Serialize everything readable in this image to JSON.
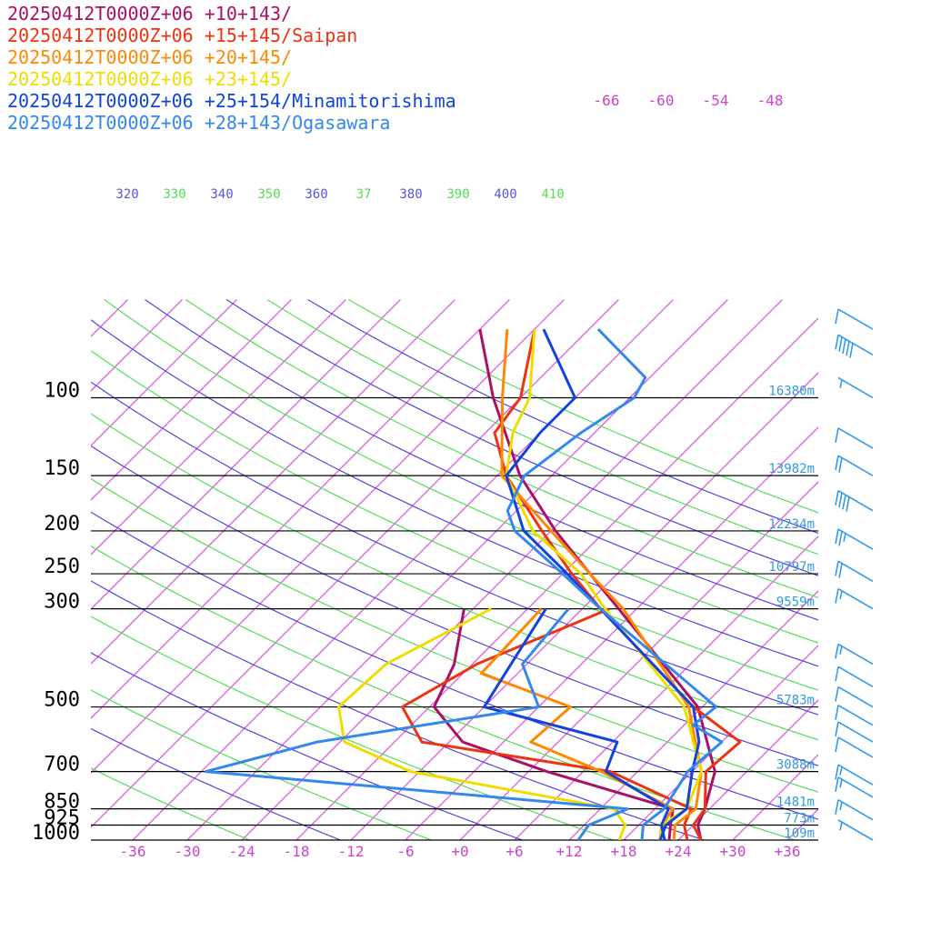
{
  "chart_data": {
    "type": "line",
    "title": "",
    "chart_kind": "Skew-T log-P sounding",
    "pressure_levels": [
      {
        "p": 100,
        "label": "100",
        "height": "16380m"
      },
      {
        "p": 150,
        "label": "150",
        "height": "13982m"
      },
      {
        "p": 200,
        "label": "200",
        "height": "12234m"
      },
      {
        "p": 250,
        "label": "250",
        "height": "10797m"
      },
      {
        "p": 300,
        "label": "300",
        "height": "9559m"
      },
      {
        "p": 500,
        "label": "500",
        "height": "5783m"
      },
      {
        "p": 700,
        "label": "700",
        "height": "3088m"
      },
      {
        "p": 850,
        "label": "850",
        "height": "1481m"
      },
      {
        "p": 925,
        "label": "925",
        "height": "773m"
      },
      {
        "p": 1000,
        "label": "1000",
        "height": "109m"
      }
    ],
    "temperature_ticks": [
      "-36",
      "-30",
      "-24",
      "-18",
      "-12",
      "-6",
      "+0",
      "+6",
      "+12",
      "+18",
      "+24",
      "+30",
      "+36"
    ],
    "upper_temperature_ticks": [
      "-66",
      "-60",
      "-54",
      "-48"
    ],
    "theta_labels": [
      {
        "value": "320",
        "color": "#5555dd"
      },
      {
        "value": "330",
        "color": "#55dd55"
      },
      {
        "value": "340",
        "color": "#5555dd"
      },
      {
        "value": "350",
        "color": "#55dd55"
      },
      {
        "value": "360",
        "color": "#5555dd"
      },
      {
        "value": "37",
        "color": "#55dd55"
      },
      {
        "value": "380",
        "color": "#5555dd"
      },
      {
        "value": "390",
        "color": "#55dd55"
      },
      {
        "value": "400",
        "color": "#5555dd"
      },
      {
        "value": "410",
        "color": "#55dd55"
      }
    ],
    "series": [
      {
        "name": "20250412T0000Z+06 +10+143/",
        "color": "#aa1166",
        "temp": [
          [
            1000,
            26.5
          ],
          [
            925,
            24.5
          ],
          [
            850,
            23.5
          ],
          [
            700,
            20.5
          ],
          [
            500,
            11.5
          ],
          [
            300,
            -8.0
          ],
          [
            250,
            -15.0
          ],
          [
            200,
            -23.5
          ],
          [
            150,
            -33.5
          ],
          [
            100,
            -45.0
          ],
          [
            70,
            -54.0
          ]
        ],
        "dewp": [
          [
            1000,
            23.0
          ],
          [
            925,
            21.5
          ],
          [
            850,
            20.0
          ],
          [
            700,
            2.0
          ],
          [
            600,
            -10.5
          ],
          [
            500,
            -17.5
          ],
          [
            400,
            -20.0
          ],
          [
            300,
            -25.0
          ]
        ]
      },
      {
        "name": "20250412T0000Z+06 +15+145/Saipan",
        "color": "#ee3311",
        "temp": [
          [
            1000,
            26.5
          ],
          [
            925,
            24.0
          ],
          [
            850,
            23.5
          ],
          [
            700,
            19.5
          ],
          [
            600,
            20.0
          ],
          [
            500,
            11.0
          ],
          [
            300,
            -10.0
          ],
          [
            250,
            -17.0
          ],
          [
            200,
            -25.0
          ],
          [
            150,
            -35.0
          ],
          [
            120,
            -41.0
          ],
          [
            100,
            -42.0
          ],
          [
            70,
            -48.0
          ]
        ],
        "dewp": [
          [
            1000,
            25.0
          ],
          [
            925,
            23.0
          ],
          [
            850,
            22.0
          ],
          [
            700,
            9.0
          ],
          [
            600,
            -15.0
          ],
          [
            500,
            -21.0
          ],
          [
            400,
            -17.5
          ],
          [
            300,
            -9.0
          ]
        ]
      },
      {
        "name": "20250412T0000Z+06 +20+145/",
        "color": "#ff8800",
        "temp": [
          [
            1000,
            23.5
          ],
          [
            925,
            22.0
          ],
          [
            850,
            22.5
          ],
          [
            700,
            19.0
          ],
          [
            500,
            10.5
          ],
          [
            300,
            -7.5
          ],
          [
            250,
            -15.0
          ],
          [
            200,
            -24.0
          ],
          [
            150,
            -35.5
          ],
          [
            100,
            -44.0
          ],
          [
            70,
            -51.0
          ]
        ],
        "dewp": [
          [
            1000,
            22.0
          ],
          [
            925,
            20.5
          ],
          [
            850,
            20.0
          ],
          [
            700,
            8.0
          ],
          [
            600,
            -3.0
          ],
          [
            500,
            -2.5
          ],
          [
            420,
            -16.0
          ],
          [
            300,
            -16.5
          ]
        ]
      },
      {
        "name": "20250412T0000Z+06 +23+145/",
        "color": "#eedd00",
        "temp": [
          [
            1000,
            22.0
          ],
          [
            925,
            20.5
          ],
          [
            850,
            21.5
          ],
          [
            700,
            19.0
          ],
          [
            500,
            10.0
          ],
          [
            300,
            -9.5
          ],
          [
            250,
            -16.0
          ],
          [
            200,
            -26.0
          ],
          [
            150,
            -35.0
          ],
          [
            120,
            -39.0
          ],
          [
            100,
            -41.0
          ],
          [
            70,
            -48.0
          ]
        ],
        "dewp": [
          [
            1000,
            17.5
          ],
          [
            925,
            16.5
          ],
          [
            850,
            13.5
          ],
          [
            700,
            -13.0
          ],
          [
            600,
            -23.5
          ],
          [
            500,
            -28.0
          ],
          [
            400,
            -27.5
          ],
          [
            300,
            -22.0
          ]
        ]
      },
      {
        "name": "20250412T0000Z+06 +25+154/Minamitorishima",
        "color": "#1144dd",
        "temp": [
          [
            1000,
            22.0
          ],
          [
            925,
            21.0
          ],
          [
            850,
            21.5
          ],
          [
            700,
            18.0
          ],
          [
            600,
            15.5
          ],
          [
            500,
            11.0
          ],
          [
            300,
            -10.0
          ],
          [
            250,
            -17.5
          ],
          [
            200,
            -27.0
          ],
          [
            150,
            -35.0
          ],
          [
            120,
            -36.0
          ],
          [
            100,
            -36.0
          ],
          [
            70,
            -47.0
          ]
        ],
        "dewp": [
          [
            1000,
            22.5
          ],
          [
            925,
            20.5
          ],
          [
            850,
            19.5
          ],
          [
            700,
            8.5
          ],
          [
            600,
            6.5
          ],
          [
            500,
            -12.0
          ],
          [
            300,
            -16.0
          ]
        ]
      },
      {
        "name": "20250412T0000Z+06 +28+143/Ogasawara",
        "color": "#3388ee",
        "temp": [
          [
            1000,
            20.0
          ],
          [
            925,
            18.5
          ],
          [
            850,
            19.0
          ],
          [
            700,
            17.5
          ],
          [
            600,
            18.0
          ],
          [
            550,
            13.0
          ],
          [
            500,
            13.5
          ],
          [
            300,
            -10.0
          ],
          [
            250,
            -18.0
          ],
          [
            200,
            -28.0
          ],
          [
            180,
            -31.0
          ],
          [
            150,
            -33.0
          ],
          [
            120,
            -31.5
          ],
          [
            100,
            -29.5
          ],
          [
            90,
            -30.5
          ],
          [
            70,
            -41.0
          ]
        ],
        "dewp": [
          [
            1000,
            13.0
          ],
          [
            925,
            12.5
          ],
          [
            850,
            15.0
          ],
          [
            700,
            -35.5
          ],
          [
            600,
            -26.5
          ],
          [
            500,
            -6.0
          ],
          [
            400,
            -12.5
          ],
          [
            300,
            -13.5
          ]
        ]
      }
    ],
    "wind_barbs": [
      {
        "p": 70,
        "flags": 0,
        "full": 1,
        "half": 0
      },
      {
        "p": 80,
        "flags": 0,
        "full": 5,
        "half": 0
      },
      {
        "p": 100,
        "flags": 0,
        "full": 0,
        "half": 1
      },
      {
        "p": 130,
        "flags": 0,
        "full": 1,
        "half": 0
      },
      {
        "p": 150,
        "flags": 0,
        "full": 2,
        "half": 0
      },
      {
        "p": 180,
        "flags": 0,
        "full": 4,
        "half": 0
      },
      {
        "p": 220,
        "flags": 0,
        "full": 2,
        "half": 1
      },
      {
        "p": 260,
        "flags": 0,
        "full": 2,
        "half": 0
      },
      {
        "p": 300,
        "flags": 0,
        "full": 1,
        "half": 1
      },
      {
        "p": 400,
        "flags": 0,
        "full": 1,
        "half": 1
      },
      {
        "p": 450,
        "flags": 0,
        "full": 1,
        "half": 0
      },
      {
        "p": 500,
        "flags": 0,
        "full": 1,
        "half": 0
      },
      {
        "p": 550,
        "flags": 0,
        "full": 1,
        "half": 0
      },
      {
        "p": 600,
        "flags": 0,
        "full": 1,
        "half": 0
      },
      {
        "p": 650,
        "flags": 0,
        "full": 1,
        "half": 0
      },
      {
        "p": 750,
        "flags": 0,
        "full": 1,
        "half": 1
      },
      {
        "p": 800,
        "flags": 0,
        "full": 1,
        "half": 1
      },
      {
        "p": 900,
        "flags": 0,
        "full": 1,
        "half": 1
      },
      {
        "p": 1000,
        "flags": 0,
        "full": 0,
        "half": 1
      }
    ],
    "colors": {
      "isotherm": "#dd33dd",
      "dry_adiabat_blue": "#5544dd",
      "dry_adiabat_green": "#55dd55",
      "isobar": "#000000",
      "barb": "#3399ee"
    }
  }
}
